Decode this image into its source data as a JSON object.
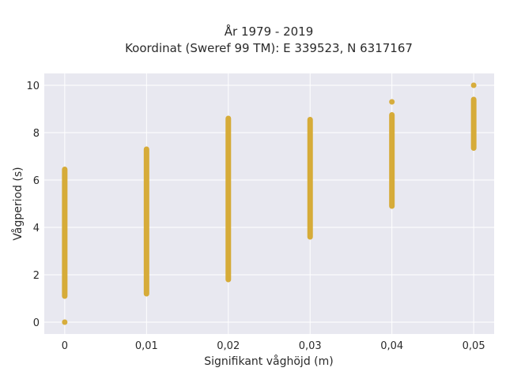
{
  "chart_data": {
    "type": "scatter",
    "title_line1": "År 1979 - 2019",
    "title_line2": "Koordinat (Sweref 99 TM): E 339523, N 6317167",
    "xlabel": "Signifikant våghöjd (m)",
    "ylabel": "Vågperiod (s)",
    "x_ticks": [
      "0",
      "0,01",
      "0,02",
      "0,03",
      "0,04",
      "0,05"
    ],
    "y_ticks": [
      "0",
      "2",
      "4",
      "6",
      "8",
      "10"
    ],
    "xlim": [
      -0.0025,
      0.0525
    ],
    "ylim": [
      -0.5,
      10.5
    ],
    "grid": true,
    "series": [
      {
        "marker_color": "#D4A528",
        "columns": [
          {
            "x": 0.0,
            "y_min": 1.1,
            "y_max": 6.45,
            "outliers": [
              0.0
            ]
          },
          {
            "x": 0.01,
            "y_min": 1.2,
            "y_max": 7.3,
            "outliers": []
          },
          {
            "x": 0.02,
            "y_min": 1.8,
            "y_max": 8.6,
            "outliers": []
          },
          {
            "x": 0.03,
            "y_min": 3.6,
            "y_max": 8.55,
            "outliers": []
          },
          {
            "x": 0.04,
            "y_min": 4.9,
            "y_max": 8.75,
            "outliers": [
              9.3
            ]
          },
          {
            "x": 0.05,
            "y_min": 7.35,
            "y_max": 9.4,
            "outliers": [
              10.0
            ]
          }
        ]
      }
    ]
  },
  "colors": {
    "plot_bg": "#E8E8F0",
    "grid": "#FFFFFF",
    "marker": "#D4A528"
  }
}
